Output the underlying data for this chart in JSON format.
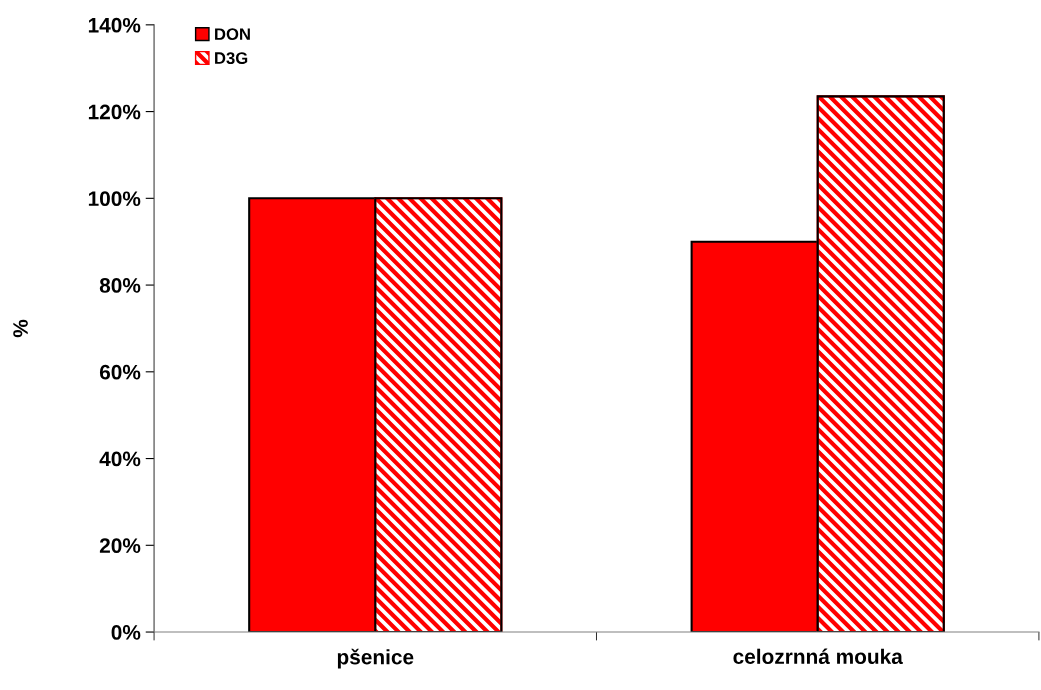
{
  "chart_data": {
    "type": "bar",
    "ylabel": "%",
    "categories": [
      "pšenice",
      "celozrnná mouka"
    ],
    "series": [
      {
        "name": "DON",
        "color": "#ff0000",
        "values": [
          100,
          90
        ]
      },
      {
        "name": "D3G",
        "color": "#ff0000",
        "values": [
          100,
          123.5
        ]
      }
    ],
    "ylim": [
      0,
      140
    ],
    "yticks": [
      {
        "value": 0,
        "label": "0%"
      },
      {
        "value": 20,
        "label": "20%"
      },
      {
        "value": 40,
        "label": "40%"
      },
      {
        "value": 60,
        "label": "60%"
      },
      {
        "value": 80,
        "label": "80%"
      },
      {
        "value": 100,
        "label": "100%"
      },
      {
        "value": 120,
        "label": "120%"
      },
      {
        "value": 140,
        "label": "140%"
      }
    ],
    "grid": false,
    "legend": "top left"
  }
}
